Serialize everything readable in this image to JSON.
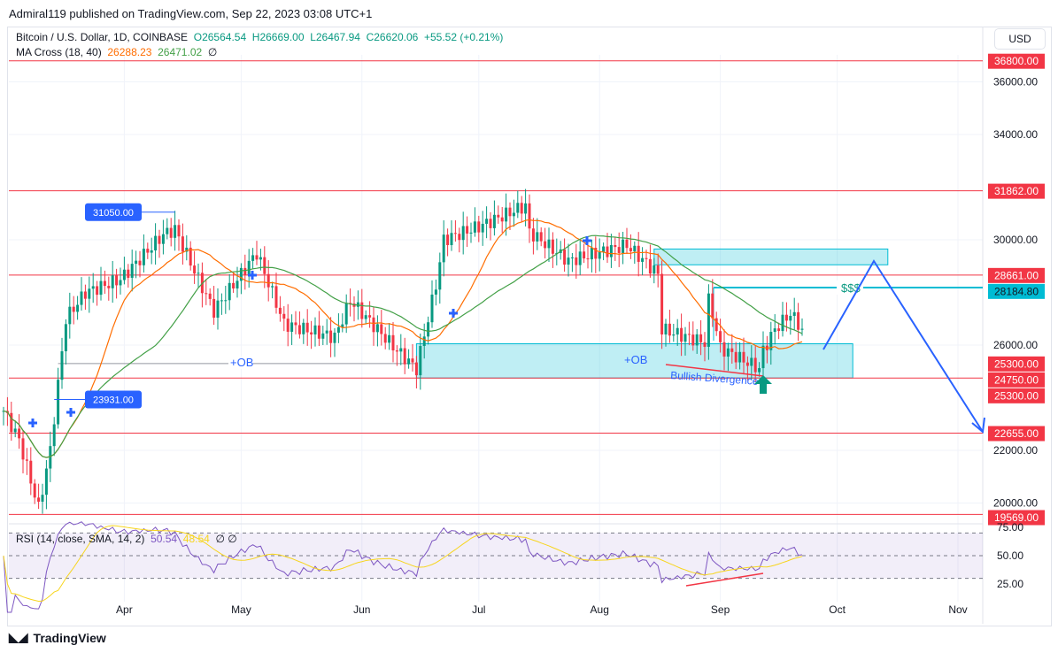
{
  "publisher_line": "Admiral119 published on TradingView.com, Sep 22, 2023 03:08 UTC+1",
  "symbol": {
    "name": "Bitcoin / U.S. Dollar, 1D, COINBASE",
    "o": "O26564.54",
    "h": "H26669.00",
    "l": "L26467.94",
    "c": "C26620.06",
    "chg": "+55.52 (+0.21%)"
  },
  "ma": {
    "name": "MA Cross (18, 40)",
    "fast": "26288.23",
    "slow": "26471.02",
    "sym": "∅"
  },
  "rsi": {
    "name": "RSI (14, close, SMA, 14, 2)",
    "val": "50.54",
    "sma": "48.54",
    "sym": "∅ ∅"
  },
  "currency": "USD",
  "brand": "TradingView",
  "colors": {
    "up": "#089981",
    "down": "#f23645",
    "fast": "#ff6d00",
    "slow": "#43a047",
    "level": "#f23645",
    "zone": "#00bcd4",
    "arrow": "#2962ff",
    "rsi": "#7e57c2",
    "rsi_sma": "#f7d51d"
  },
  "chart_data": {
    "type": "candlestick",
    "start_date": "2023-03-01",
    "ylim": [
      19000,
      37500
    ],
    "yticks": [
      "36000.00",
      "34000.00",
      "30000.00",
      "26000.00",
      "22000.00",
      "20000.00"
    ],
    "ytick_values": [
      36000,
      34000,
      30000,
      26000,
      22000,
      20000
    ],
    "xticks": [
      "Apr",
      "May",
      "Jun",
      "Jul",
      "Aug",
      "Sep",
      "Oct",
      "Nov"
    ],
    "xtick_days": [
      31,
      61,
      92,
      122,
      153,
      184,
      214,
      245
    ],
    "close_keypoints": [
      [
        0,
        23500
      ],
      [
        4,
        22400
      ],
      [
        9,
        19800
      ],
      [
        12,
        22000
      ],
      [
        16,
        27000
      ],
      [
        21,
        28000
      ],
      [
        30,
        28500
      ],
      [
        41,
        30200
      ],
      [
        44,
        30400
      ],
      [
        50,
        28500
      ],
      [
        54,
        27300
      ],
      [
        65,
        29500
      ],
      [
        70,
        27600
      ],
      [
        72,
        26800
      ],
      [
        85,
        26300
      ],
      [
        89,
        27700
      ],
      [
        101,
        25800
      ],
      [
        106,
        25100
      ],
      [
        111,
        28300
      ],
      [
        113,
        30000
      ],
      [
        122,
        30500
      ],
      [
        134,
        31300
      ],
      [
        135,
        30300
      ],
      [
        145,
        29200
      ],
      [
        160,
        29800
      ],
      [
        168,
        28700
      ],
      [
        169,
        26600
      ],
      [
        180,
        26100
      ],
      [
        181,
        27700
      ],
      [
        182,
        27200
      ],
      [
        184,
        25900
      ],
      [
        194,
        25100
      ],
      [
        195,
        25800
      ],
      [
        198,
        26600
      ],
      [
        202,
        27200
      ],
      [
        205,
        26620
      ]
    ],
    "levels": [
      {
        "value": 36800,
        "label": "36800.00"
      },
      {
        "value": 31862,
        "label": "31862.00"
      },
      {
        "value": 28661,
        "label": "28661.00"
      },
      {
        "value": 24750,
        "label": "24750.00"
      },
      {
        "value": 22655,
        "label": "22655.00"
      },
      {
        "value": 19569,
        "label": "19569.00"
      }
    ],
    "extra_labels": [
      {
        "value": 25300,
        "label": "25300.00",
        "offset": 0
      },
      {
        "value": 25300,
        "label": "25300.00",
        "offset": 1
      }
    ],
    "liquidity": {
      "value": 28184.8,
      "label": "28184.80",
      "text": "$$$"
    },
    "order_blocks": [
      {
        "label": "+OB",
        "from_day": 106,
        "to_day": 218,
        "top": 26050,
        "bottom": 24750
      },
      {
        "label": "+OB",
        "from_day": 14,
        "to_day": 106,
        "top": 25300,
        "bottom": 25300
      }
    ],
    "supply_zone": {
      "from_day": 167,
      "to_day": 227,
      "top": 29650,
      "bottom": 29050
    },
    "callouts": [
      {
        "label": "31050.00",
        "day": 44,
        "value": 31050
      },
      {
        "label": "23931.00",
        "day": 13,
        "value": 23931
      }
    ],
    "annotation": "Bullish Divergence",
    "rsi_levels": [
      "75.00",
      "50.00",
      "25.00"
    ]
  }
}
